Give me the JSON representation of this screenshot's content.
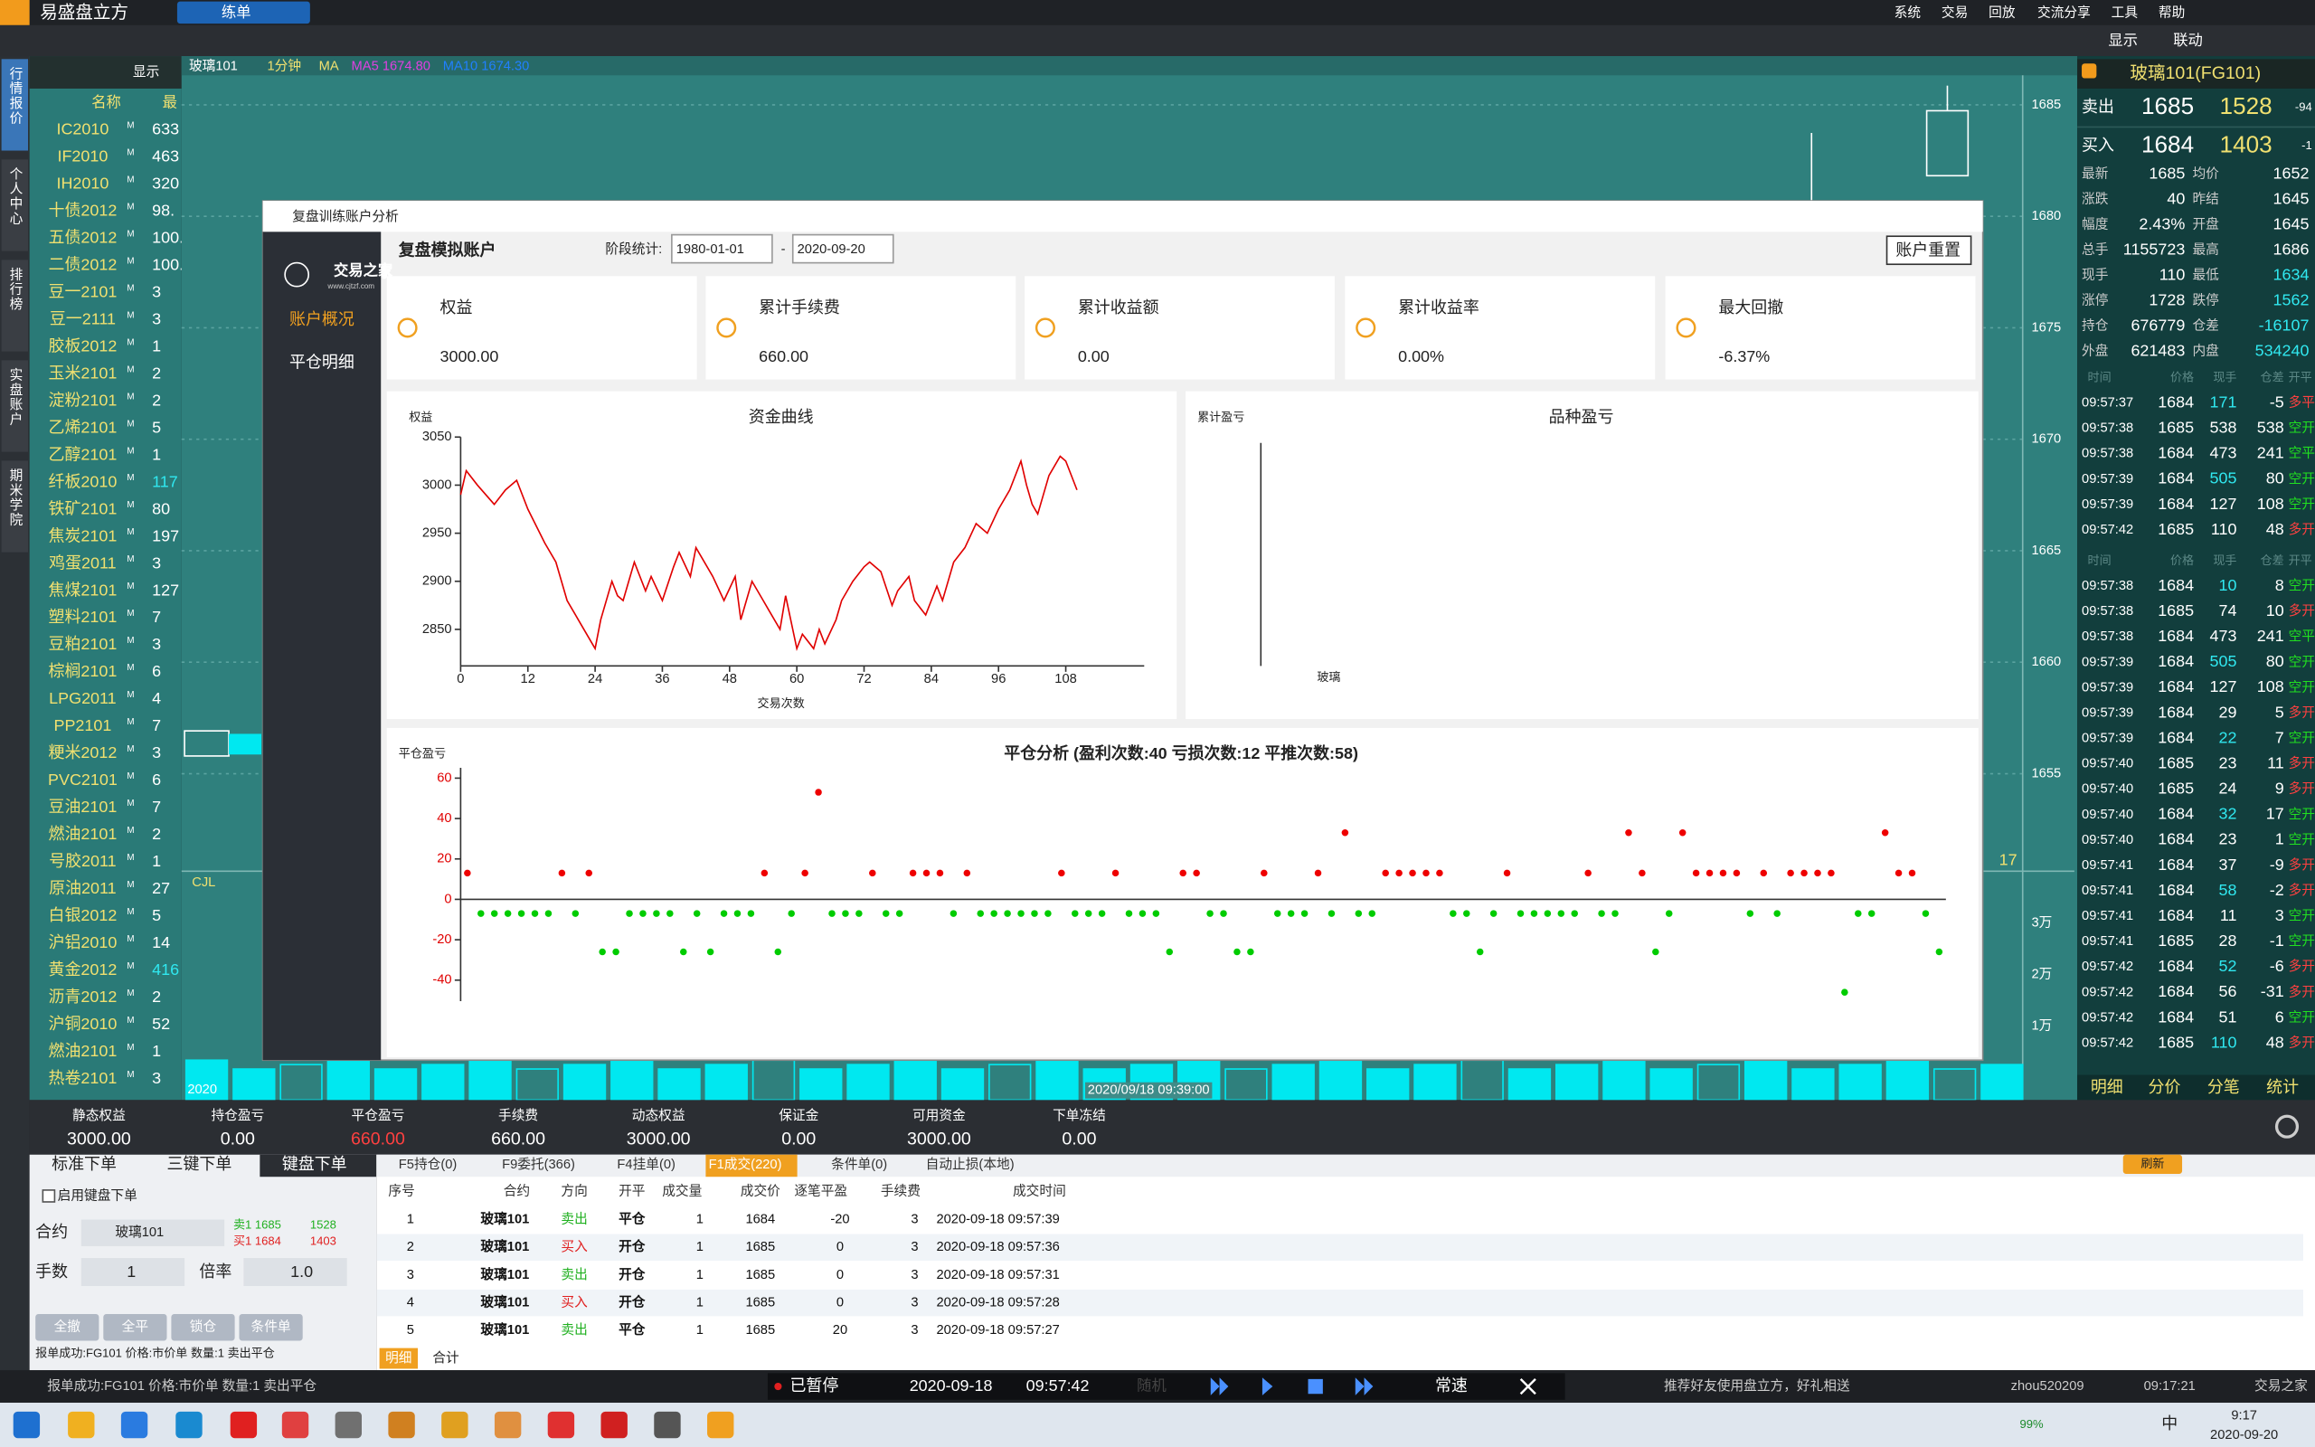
{
  "titlebar": {
    "app_name": "易盛盘立方",
    "tab": "练单",
    "menu": [
      "系统",
      "交易",
      "回放",
      "交流分享",
      "工具",
      "帮助"
    ],
    "controls": [
      "显示",
      "联动"
    ]
  },
  "sidebar": [
    "行情报价",
    "个人中心",
    "排行榜",
    "实盘账户",
    "期米学院"
  ],
  "watchlist": {
    "display": "显示",
    "columns": [
      "名称",
      "最"
    ],
    "flag": "M",
    "rows": [
      [
        "IC2010",
        "633"
      ],
      [
        "IF2010",
        "463"
      ],
      [
        "IH2010",
        "320"
      ],
      [
        "十债2012",
        "98."
      ],
      [
        "五债2012",
        "100."
      ],
      [
        "二债2012",
        "100."
      ],
      [
        "豆一2101",
        "3"
      ],
      [
        "豆一2111",
        "3"
      ],
      [
        "胶板2012",
        "1"
      ],
      [
        "玉米2101",
        "2"
      ],
      [
        "淀粉2101",
        "2"
      ],
      [
        "乙烯2101",
        "5"
      ],
      [
        "乙醇2101",
        "1"
      ],
      [
        "纤板2010",
        "117"
      ],
      [
        "铁矿2101",
        "80"
      ],
      [
        "焦炭2101",
        "197"
      ],
      [
        "鸡蛋2011",
        "3"
      ],
      [
        "焦煤2101",
        "127"
      ],
      [
        "塑料2101",
        "7"
      ],
      [
        "豆粕2101",
        "3"
      ],
      [
        "棕榈2101",
        "6"
      ],
      [
        "LPG2011",
        "4"
      ],
      [
        "PP2101",
        "7"
      ],
      [
        "粳米2012",
        "3"
      ],
      [
        "PVC2101",
        "6"
      ],
      [
        "豆油2101",
        "7"
      ],
      [
        "燃油2101",
        "2"
      ],
      [
        "号胶2011",
        "1"
      ],
      [
        "原油2011",
        "27"
      ],
      [
        "白银2012",
        "5"
      ],
      [
        "沪铝2010",
        "14"
      ],
      [
        "黄金2012",
        "416"
      ],
      [
        "沥青2012",
        "2"
      ],
      [
        "沪铜2010",
        "52"
      ],
      [
        "燃油2101",
        "1"
      ],
      [
        "热卷2101",
        "3"
      ]
    ]
  },
  "main_chart": {
    "header": [
      "玻璃101",
      "1分钟",
      "MA",
      "MA5 1674.80",
      "MA10 1674.30"
    ],
    "price_axis": [
      1685,
      1680,
      1675,
      1670,
      1665,
      1660,
      1655
    ],
    "volume_label": "CJL",
    "volume_axis": [
      "3万",
      "2万",
      "1万"
    ],
    "marker": "17",
    "date_start": "2020",
    "cursor_time": "2020/09/18 09:39:00"
  },
  "dialog": {
    "title": "复盘训练账户分析",
    "account": "复盘模拟账户",
    "period_label": "阶段统计:",
    "start_date": "1980-01-01",
    "date_separator": "-",
    "end_date": "2020-09-20",
    "reset": "账户重置",
    "logo": "交易之家",
    "logo_url": "www.cjtzf.com",
    "nav": [
      "账户概况",
      "平仓明细"
    ],
    "cards": [
      {
        "label": "权益",
        "value": "3000.00"
      },
      {
        "label": "累计手续费",
        "value": "660.00"
      },
      {
        "label": "累计收益额",
        "value": "0.00"
      },
      {
        "label": "累计收益率",
        "value": "0.00%"
      },
      {
        "label": "最大回撤",
        "value": "-6.37%"
      }
    ],
    "equity_chart": {
      "type": "line",
      "title": "资金曲线",
      "y_label": "权益",
      "x_label": "交易次数",
      "color": "#e00000",
      "x": [
        0,
        1,
        3,
        6,
        8,
        10,
        12,
        15,
        17,
        19,
        21,
        23,
        24,
        25,
        27,
        28,
        29,
        31,
        33,
        34,
        36,
        38,
        39,
        41,
        42,
        45,
        47,
        49,
        50,
        51,
        52,
        54,
        55,
        57,
        58,
        60,
        61,
        63,
        64,
        65,
        67,
        68,
        70,
        72,
        73,
        75,
        77,
        78,
        80,
        81,
        83,
        85,
        86,
        88,
        90,
        92,
        94,
        96,
        98,
        100,
        101,
        102,
        103,
        105,
        107,
        108,
        110
      ],
      "values": [
        2990,
        3015,
        3000,
        2980,
        2995,
        3005,
        2975,
        2940,
        2920,
        2880,
        2860,
        2840,
        2830,
        2860,
        2900,
        2885,
        2880,
        2920,
        2890,
        2905,
        2880,
        2915,
        2930,
        2905,
        2935,
        2905,
        2880,
        2905,
        2860,
        2880,
        2900,
        2880,
        2870,
        2850,
        2885,
        2830,
        2845,
        2830,
        2850,
        2835,
        2860,
        2880,
        2900,
        2915,
        2920,
        2910,
        2875,
        2890,
        2905,
        2880,
        2865,
        2895,
        2880,
        2920,
        2935,
        2960,
        2950,
        2975,
        2995,
        3025,
        3000,
        2980,
        2970,
        3010,
        3030,
        3025,
        2995
      ],
      "xlim": [
        0,
        122
      ],
      "ylim": [
        2812,
        3050
      ],
      "xticks": [
        0,
        12,
        24,
        36,
        48,
        60,
        72,
        84,
        96,
        108
      ],
      "yticks": [
        2850,
        2900,
        2950,
        3000,
        3050
      ]
    },
    "variety_chart": {
      "type": "bar",
      "title": "品种盈亏",
      "y_label": "累计盈亏",
      "categories": [
        "玻璃"
      ],
      "values": [
        0
      ]
    },
    "pnl_chart": {
      "type": "scatter",
      "title": "平仓分析 (盈利次数:40 亏损次数:12 平推次数:58)",
      "y_label": "平仓盈亏",
      "colors": {
        "positive": "#ee0000",
        "negative": "#00cc00"
      },
      "x": [
        1,
        2,
        3,
        4,
        5,
        6,
        7,
        8,
        9,
        10,
        11,
        12,
        13,
        14,
        15,
        16,
        17,
        18,
        19,
        20,
        21,
        22,
        23,
        24,
        25,
        26,
        27,
        28,
        29,
        30,
        31,
        32,
        33,
        34,
        35,
        36,
        37,
        38,
        39,
        40,
        41,
        42,
        43,
        44,
        45,
        46,
        47,
        48,
        49,
        50,
        51,
        52,
        53,
        54,
        55,
        56,
        57,
        58,
        59,
        60,
        61,
        62,
        63,
        64,
        65,
        66,
        67,
        68,
        69,
        70,
        71,
        72,
        73,
        74,
        75,
        76,
        77,
        78,
        79,
        80,
        81,
        82,
        83,
        84,
        85,
        86,
        87,
        88,
        89,
        90,
        91,
        92,
        93,
        94,
        95,
        96,
        97,
        98,
        99,
        100,
        101,
        102,
        103,
        104,
        105,
        106,
        107,
        108,
        109,
        110
      ],
      "values": [
        13,
        -7,
        -7,
        -7,
        -7,
        -7,
        -7,
        13,
        -7,
        13,
        -26,
        -26,
        -7,
        -7,
        -7,
        -7,
        -26,
        -7,
        -26,
        -7,
        -7,
        -7,
        13,
        -26,
        -7,
        13,
        53,
        -7,
        -7,
        -7,
        13,
        -7,
        -7,
        13,
        13,
        13,
        -7,
        13,
        -7,
        -7,
        -7,
        -7,
        -7,
        -7,
        13,
        -7,
        -7,
        -7,
        13,
        -7,
        -7,
        -7,
        -26,
        13,
        13,
        -7,
        -7,
        -26,
        -26,
        13,
        -7,
        -7,
        -7,
        13,
        -7,
        33,
        -7,
        -7,
        13,
        13,
        13,
        13,
        13,
        -7,
        -7,
        -26,
        -7,
        13,
        -7,
        -7,
        -7,
        -7,
        -7,
        13,
        -7,
        -7,
        33,
        13,
        -26,
        -7,
        33,
        13,
        13,
        13,
        13,
        -7,
        13,
        -7,
        13,
        13,
        13,
        13,
        -46,
        -7,
        -7,
        33,
        13,
        13,
        -7,
        -26
      ],
      "xlim": [
        0.5,
        110.5
      ],
      "ylim": [
        -50,
        60
      ],
      "yticks": [
        -40,
        -20,
        0,
        20,
        40,
        60
      ]
    }
  },
  "quote": {
    "title": "玻璃101(FG101)",
    "ask": {
      "label": "卖出",
      "price": 1685,
      "volume": 1528,
      "change": -94
    },
    "bid": {
      "label": "买入",
      "price": 1684,
      "volume": 1403,
      "change": -1
    },
    "stats": [
      [
        "最新",
        "1685",
        "均价",
        "1652"
      ],
      [
        "涨跌",
        "40",
        "昨结",
        "1645"
      ],
      [
        "幅度",
        "2.43%",
        "开盘",
        "1645"
      ],
      [
        "总手",
        "1155723",
        "最高",
        "1686"
      ],
      [
        "现手",
        "110",
        "最低",
        "1634"
      ],
      [
        "涨停",
        "1728",
        "跌停",
        "1562"
      ],
      [
        "持仓",
        "676779",
        "仓差",
        "-16107"
      ],
      [
        "外盘",
        "621483",
        "内盘",
        "534240"
      ]
    ],
    "tick_header": [
      "时间",
      "价格",
      "现手",
      "仓差",
      "开平"
    ],
    "ticks_top": [
      [
        "09:57:37",
        "1684",
        "171",
        "-5",
        "多平"
      ],
      [
        "09:57:38",
        "1685",
        "538",
        "538",
        "空开"
      ],
      [
        "09:57:38",
        "1684",
        "473",
        "241",
        "空平"
      ],
      [
        "09:57:39",
        "1684",
        "505",
        "80",
        "空开"
      ],
      [
        "09:57:39",
        "1684",
        "127",
        "108",
        "空开"
      ],
      [
        "09:57:42",
        "1685",
        "110",
        "48",
        "多开"
      ]
    ],
    "ticks_bottom": [
      [
        "09:57:38",
        "1684",
        "10",
        "8",
        "空开"
      ],
      [
        "09:57:38",
        "1685",
        "74",
        "10",
        "多开"
      ],
      [
        "09:57:38",
        "1684",
        "473",
        "241",
        "空平"
      ],
      [
        "09:57:39",
        "1684",
        "505",
        "80",
        "空开"
      ],
      [
        "09:57:39",
        "1684",
        "127",
        "108",
        "空开"
      ],
      [
        "09:57:39",
        "1684",
        "29",
        "5",
        "多开"
      ],
      [
        "09:57:39",
        "1684",
        "22",
        "7",
        "空开"
      ],
      [
        "09:57:40",
        "1685",
        "23",
        "11",
        "多开"
      ],
      [
        "09:57:40",
        "1685",
        "24",
        "9",
        "多开"
      ],
      [
        "09:57:40",
        "1684",
        "32",
        "17",
        "空开"
      ],
      [
        "09:57:40",
        "1684",
        "23",
        "1",
        "空开"
      ],
      [
        "09:57:41",
        "1684",
        "37",
        "-9",
        "多开"
      ],
      [
        "09:57:41",
        "1684",
        "58",
        "-2",
        "多开"
      ],
      [
        "09:57:41",
        "1684",
        "11",
        "3",
        "空开"
      ],
      [
        "09:57:41",
        "1685",
        "28",
        "-1",
        "空开"
      ],
      [
        "09:57:42",
        "1684",
        "52",
        "-6",
        "多开"
      ],
      [
        "09:57:42",
        "1684",
        "56",
        "-31",
        "多开"
      ],
      [
        "09:57:42",
        "1684",
        "51",
        "6",
        "空开"
      ],
      [
        "09:57:42",
        "1685",
        "110",
        "48",
        "多开"
      ]
    ],
    "tabs": [
      "明细",
      "分价",
      "分笔",
      "统计"
    ]
  },
  "account_bar": {
    "labels": [
      "静态权益",
      "持仓盈亏",
      "平仓盈亏",
      "手续费",
      "动态权益",
      "保证金",
      "可用资金",
      "下单冻结"
    ],
    "values": [
      "3000.00",
      "0.00",
      "660.00",
      "660.00",
      "3000.00",
      "0.00",
      "3000.00",
      "0.00"
    ]
  },
  "order": {
    "tabs": [
      "标准下单",
      "三键下单",
      "键盘下单"
    ],
    "keyboard": "启用键盘下单",
    "contract_label": "合约",
    "contract": "玻璃101",
    "sell1": [
      "卖1 1685",
      "1528"
    ],
    "buy1": [
      "买1 1684",
      "1403"
    ],
    "qty_label": "手数",
    "qty": 1,
    "mult_label": "倍率",
    "mult": "1.0",
    "buttons": [
      "全撤",
      "全平",
      "锁仓",
      "条件单"
    ],
    "message": "报单成功:FG101 价格:市价单 数量:1 卖出平仓"
  },
  "trades": {
    "tabs": [
      "F5持仓(0)",
      "F9委托(366)",
      "F4挂单(0)",
      "F1成交(220)",
      "条件单(0)",
      "自动止损(本地)"
    ],
    "refresh": "刷新",
    "columns": [
      "序号",
      "合约",
      "方向",
      "开平",
      "成交量",
      "成交价",
      "逐笔平盈",
      "手续费",
      "成交时间"
    ],
    "rows": [
      [
        1,
        "玻璃101",
        "卖出",
        "平仓",
        1,
        1684,
        -20,
        3,
        "2020-09-18 09:57:39"
      ],
      [
        2,
        "玻璃101",
        "买入",
        "开仓",
        1,
        1685,
        0,
        3,
        "2020-09-18 09:57:36"
      ],
      [
        3,
        "玻璃101",
        "卖出",
        "开仓",
        1,
        1685,
        0,
        3,
        "2020-09-18 09:57:31"
      ],
      [
        4,
        "玻璃101",
        "买入",
        "开仓",
        1,
        1685,
        0,
        3,
        "2020-09-18 09:57:28"
      ],
      [
        5,
        "玻璃101",
        "卖出",
        "平仓",
        1,
        1685,
        20,
        3,
        "2020-09-18 09:57:27"
      ]
    ],
    "bottom_tabs": [
      "明细",
      "合计"
    ]
  },
  "statusbar": {
    "message": "报单成功:FG101 价格:市价单 数量:1 卖出平仓",
    "paused": "已暂停",
    "date": "2020-09-18",
    "time": "09:57:42",
    "random": "随机",
    "speed": "常速",
    "promo": "推荐好友使用盘立方，好礼相送",
    "user": "zhou520209",
    "clock": "09:17:21",
    "brand": "交易之家"
  },
  "taskbar": {
    "battery": "99%",
    "ime": "中",
    "time": "9:17",
    "date": "2020-09-20"
  }
}
